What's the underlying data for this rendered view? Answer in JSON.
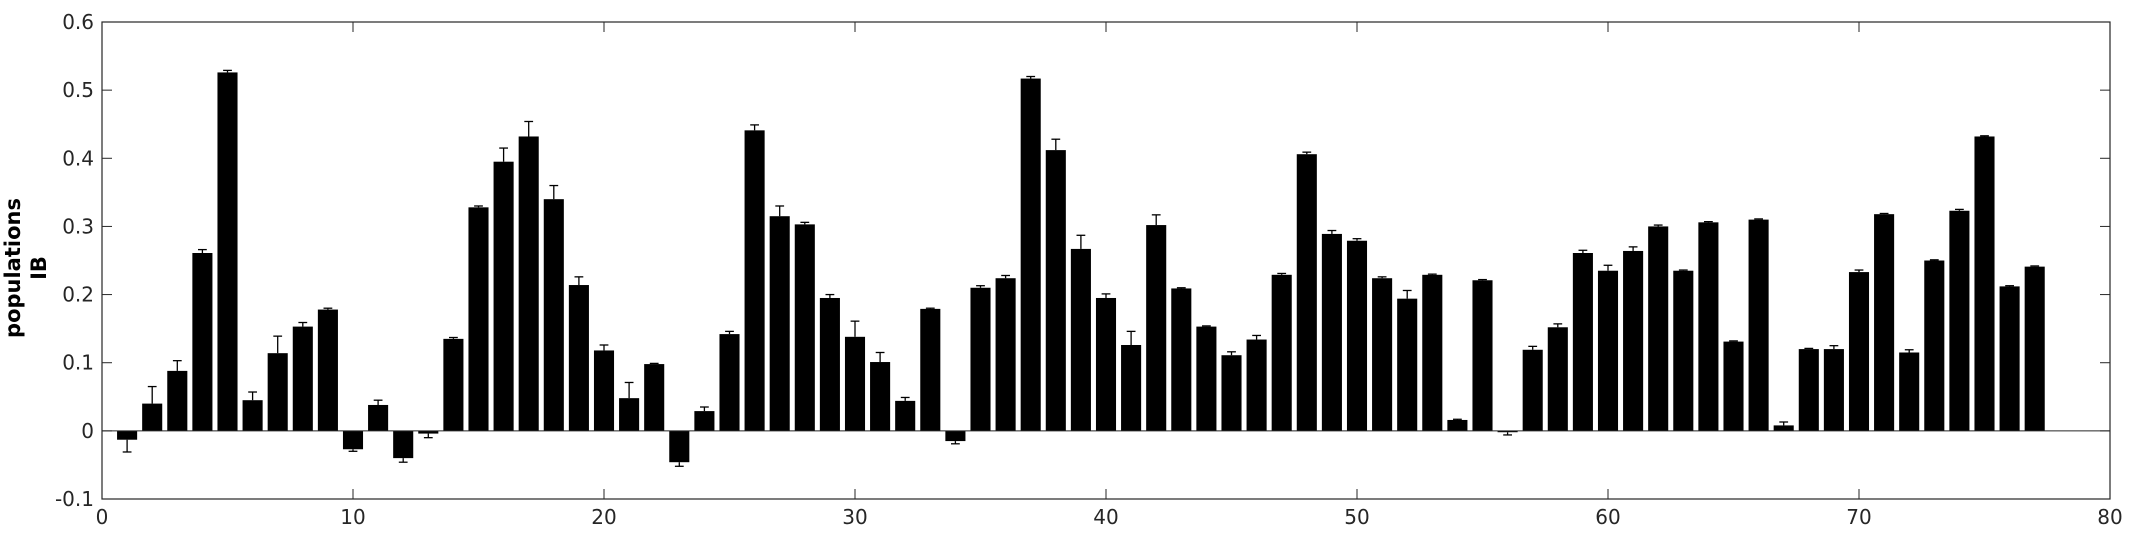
{
  "chart_data": {
    "type": "bar",
    "title": "",
    "xlabel": "",
    "ylabel_lines": [
      "populations",
      "IB"
    ],
    "xlim": [
      0,
      80
    ],
    "ylim": [
      -0.1,
      0.6
    ],
    "xticks": [
      0,
      10,
      20,
      30,
      40,
      50,
      60,
      70,
      80
    ],
    "yticks": [
      -0.1,
      0,
      0.1,
      0.2,
      0.3,
      0.4,
      0.5,
      0.6
    ],
    "xtick_labels": [
      "0",
      "10",
      "20",
      "30",
      "40",
      "50",
      "60",
      "70",
      "80"
    ],
    "ytick_labels": [
      "-0.1",
      "0",
      "0.1",
      "0.2",
      "0.3",
      "0.4",
      "0.5",
      "0.6"
    ],
    "grid": false,
    "legend": "none",
    "bar_color": "#000000",
    "x": [
      1,
      2,
      3,
      4,
      5,
      6,
      7,
      8,
      9,
      10,
      11,
      12,
      13,
      14,
      15,
      16,
      17,
      18,
      19,
      20,
      21,
      22,
      23,
      24,
      25,
      26,
      27,
      28,
      29,
      30,
      31,
      32,
      33,
      34,
      35,
      36,
      37,
      38,
      39,
      40,
      41,
      42,
      43,
      44,
      45,
      46,
      47,
      48,
      49,
      50,
      51,
      52,
      53,
      54,
      55,
      56,
      57,
      58,
      59,
      60,
      61,
      62,
      63,
      64,
      65,
      66,
      67,
      68,
      69,
      70,
      71,
      72,
      73,
      74,
      75,
      76,
      77
    ],
    "values": [
      -0.013,
      0.04,
      0.088,
      0.261,
      0.526,
      0.045,
      0.114,
      0.153,
      0.178,
      -0.027,
      0.038,
      -0.04,
      -0.004,
      0.135,
      0.328,
      0.395,
      0.432,
      0.34,
      0.214,
      0.118,
      0.048,
      0.098,
      -0.046,
      0.029,
      0.142,
      0.441,
      0.315,
      0.303,
      0.195,
      0.138,
      0.101,
      0.044,
      0.179,
      -0.015,
      0.21,
      0.224,
      0.517,
      0.412,
      0.267,
      0.195,
      0.126,
      0.302,
      0.209,
      0.153,
      0.111,
      0.134,
      0.229,
      0.406,
      0.289,
      0.279,
      0.224,
      0.194,
      0.229,
      0.016,
      0.221,
      -0.002,
      0.119,
      0.152,
      0.261,
      0.235,
      0.264,
      0.3,
      0.235,
      0.306,
      0.131,
      0.31,
      0.008,
      0.12,
      0.12,
      0.233,
      0.318,
      0.115,
      0.25,
      0.323,
      0.432,
      0.212,
      0.241
    ],
    "errors": [
      0.018,
      0.025,
      0.015,
      0.005,
      0.003,
      0.012,
      0.025,
      0.006,
      0.002,
      0.003,
      0.007,
      0.006,
      0.006,
      0.002,
      0.002,
      0.02,
      0.022,
      0.02,
      0.012,
      0.008,
      0.023,
      0.001,
      0.006,
      0.006,
      0.004,
      0.008,
      0.015,
      0.003,
      0.005,
      0.023,
      0.014,
      0.005,
      0.001,
      0.004,
      0.003,
      0.004,
      0.003,
      0.016,
      0.02,
      0.006,
      0.02,
      0.015,
      0.001,
      0.001,
      0.005,
      0.006,
      0.002,
      0.003,
      0.005,
      0.003,
      0.002,
      0.012,
      0.001,
      0.001,
      0.001,
      0.004,
      0.005,
      0.005,
      0.004,
      0.008,
      0.006,
      0.002,
      0.001,
      0.001,
      0.001,
      0.001,
      0.005,
      0.001,
      0.005,
      0.003,
      0.001,
      0.004,
      0.001,
      0.002,
      0.001,
      0.001,
      0.001
    ]
  }
}
